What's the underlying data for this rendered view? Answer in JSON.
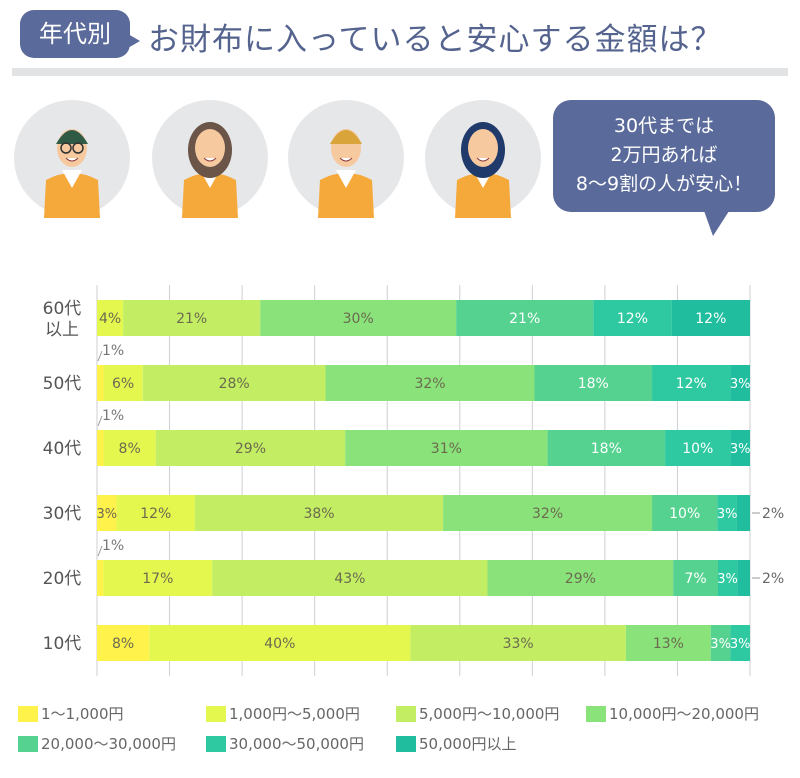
{
  "header": {
    "tag": "年代別",
    "title": "お財布に入っていると安心する金額は？"
  },
  "bubble": {
    "lines": [
      "30代までは",
      "2万円あれば",
      "8〜9割の人が安心！"
    ]
  },
  "illustrations": [
    "man-with-glasses",
    "woman-waving",
    "young-man-waving",
    "woman-long-hair"
  ],
  "chart_data": {
    "type": "bar",
    "orientation": "horizontal-stacked-100",
    "categories": [
      [
        "60代",
        "以上"
      ],
      [
        "50代"
      ],
      [
        "40代"
      ],
      [
        "30代"
      ],
      [
        "20代"
      ],
      [
        "10代"
      ]
    ],
    "series": [
      {
        "name": "1〜1,000円",
        "color": "#fff24a",
        "values": [
          0,
          1,
          1,
          3,
          1,
          8
        ]
      },
      {
        "name": "1,000円〜5,000円",
        "color": "#e4f74f",
        "values": [
          4,
          6,
          8,
          12,
          17,
          40
        ]
      },
      {
        "name": "5,000円〜10,000円",
        "color": "#c3ee63",
        "values": [
          21,
          28,
          29,
          38,
          43,
          33
        ]
      },
      {
        "name": "10,000円〜20,000円",
        "color": "#8ae27a",
        "values": [
          30,
          32,
          31,
          32,
          29,
          13
        ]
      },
      {
        "name": "20,000〜30,000円",
        "color": "#55d290",
        "values": [
          21,
          18,
          18,
          10,
          7,
          3
        ]
      },
      {
        "name": "30,000〜50,000円",
        "color": "#2ec9a0",
        "values": [
          12,
          12,
          10,
          3,
          3,
          3
        ]
      },
      {
        "name": "50,000円以上",
        "color": "#20bd9e",
        "values": [
          12,
          3,
          3,
          2,
          2,
          0
        ]
      }
    ],
    "unit": "%",
    "xlim": [
      0,
      100
    ],
    "grid": true,
    "legend": "bottom"
  }
}
